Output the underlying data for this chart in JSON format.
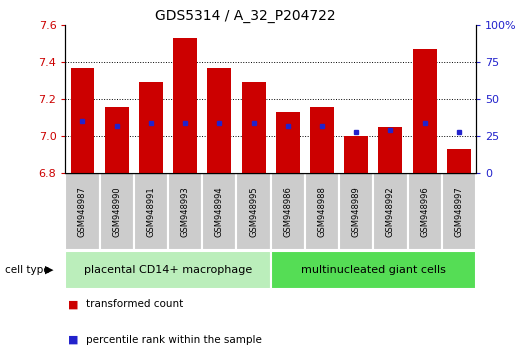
{
  "title": "GDS5314 / A_32_P204722",
  "samples": [
    "GSM948987",
    "GSM948990",
    "GSM948991",
    "GSM948993",
    "GSM948994",
    "GSM948995",
    "GSM948986",
    "GSM948988",
    "GSM948989",
    "GSM948992",
    "GSM948996",
    "GSM948997"
  ],
  "transformed_count": [
    7.37,
    7.16,
    7.29,
    7.53,
    7.37,
    7.29,
    7.13,
    7.16,
    7.0,
    7.05,
    7.47,
    6.93
  ],
  "percentile_rank": [
    35,
    32,
    34,
    34,
    34,
    34,
    32,
    32,
    28,
    29,
    34,
    28
  ],
  "group1_label": "placental CD14+ macrophage",
  "group2_label": "multinucleated giant cells",
  "group1_count": 6,
  "group2_count": 6,
  "ymin": 6.8,
  "ymax": 7.6,
  "yticks": [
    6.8,
    7.0,
    7.2,
    7.4,
    7.6
  ],
  "right_yticks": [
    0,
    25,
    50,
    75,
    100
  ],
  "bar_color": "#cc0000",
  "marker_color": "#2222cc",
  "group1_bg": "#bbeebb",
  "group2_bg": "#55dd55",
  "sample_bg": "#cccccc",
  "legend_tc": "transformed count",
  "legend_pr": "percentile rank within the sample",
  "cell_type_label": "cell type",
  "bar_width": 0.7,
  "baseline": 6.8
}
